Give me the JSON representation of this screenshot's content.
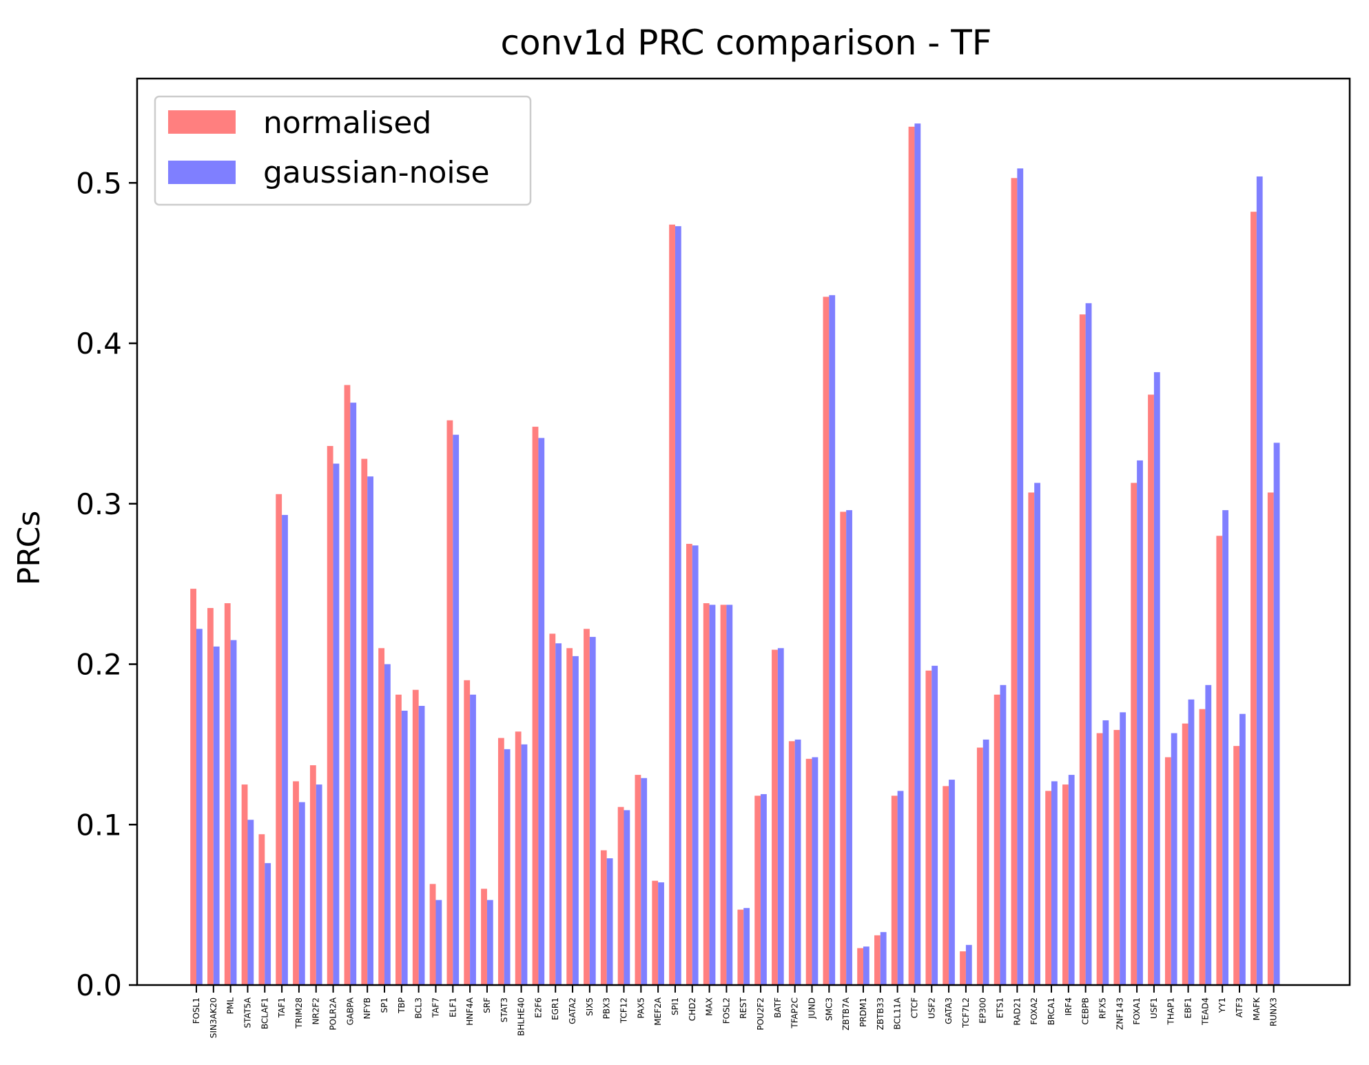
{
  "chart_data": {
    "type": "bar",
    "title": "conv1d PRC comparison - TF",
    "xlabel": "",
    "ylabel": "PRCs",
    "ylim": [
      0,
      0.565
    ],
    "yticks": [
      "0.0",
      "0.1",
      "0.2",
      "0.3",
      "0.4",
      "0.5"
    ],
    "ytick_values": [
      0,
      0.1,
      0.2,
      0.3,
      0.4,
      0.5
    ],
    "grid": false,
    "legend_position": "top-left",
    "categories": [
      "FOSL1",
      "SIN3AK20",
      "PML",
      "STAT5A",
      "BCLAF1",
      "TAF1",
      "TRIM28",
      "NR2F2",
      "POLR2A",
      "GABPA",
      "NFYB",
      "SP1",
      "TBP",
      "BCL3",
      "TAF7",
      "ELF1",
      "HNF4A",
      "SRF",
      "STAT3",
      "BHLHE40",
      "E2F6",
      "EGR1",
      "GATA2",
      "SIX5",
      "PBX3",
      "TCF12",
      "PAX5",
      "MEF2A",
      "SPI1",
      "CHD2",
      "MAX",
      "FOSL2",
      "REST",
      "POU2F2",
      "BATF",
      "TFAP2C",
      "JUND",
      "SMC3",
      "ZBTB7A",
      "PRDM1",
      "ZBTB33",
      "BCL11A",
      "CTCF",
      "USF2",
      "GATA3",
      "TCF7L2",
      "EP300",
      "ETS1",
      "RAD21",
      "FOXA2",
      "BRCA1",
      "IRF4",
      "CEBPB",
      "RFX5",
      "ZNF143",
      "FOXA1",
      "USF1",
      "THAP1",
      "EBF1",
      "TEAD4",
      "YY1",
      "ATF3",
      "MAFK",
      "RUNX3"
    ],
    "series": [
      {
        "name": "normalised",
        "color": "#ff7f7f",
        "values": [
          0.247,
          0.235,
          0.238,
          0.125,
          0.094,
          0.306,
          0.127,
          0.137,
          0.336,
          0.374,
          0.328,
          0.21,
          0.181,
          0.184,
          0.063,
          0.352,
          0.19,
          0.06,
          0.154,
          0.158,
          0.348,
          0.219,
          0.21,
          0.222,
          0.084,
          0.111,
          0.131,
          0.065,
          0.474,
          0.275,
          0.238,
          0.237,
          0.047,
          0.118,
          0.209,
          0.152,
          0.141,
          0.429,
          0.295,
          0.023,
          0.031,
          0.118,
          0.535,
          0.196,
          0.124,
          0.021,
          0.148,
          0.181,
          0.503,
          0.307,
          0.121,
          0.125,
          0.418,
          0.157,
          0.159,
          0.313,
          0.368,
          0.142,
          0.163,
          0.172,
          0.28,
          0.149,
          0.482,
          0.307
        ]
      },
      {
        "name": "gaussian-noise",
        "color": "#7f7fff",
        "values": [
          0.222,
          0.211,
          0.215,
          0.103,
          0.076,
          0.293,
          0.114,
          0.125,
          0.325,
          0.363,
          0.317,
          0.2,
          0.171,
          0.174,
          0.053,
          0.343,
          0.181,
          0.053,
          0.147,
          0.15,
          0.341,
          0.213,
          0.205,
          0.217,
          0.079,
          0.109,
          0.129,
          0.064,
          0.473,
          0.274,
          0.237,
          0.237,
          0.048,
          0.119,
          0.21,
          0.153,
          0.142,
          0.43,
          0.296,
          0.024,
          0.033,
          0.121,
          0.537,
          0.199,
          0.128,
          0.025,
          0.153,
          0.187,
          0.509,
          0.313,
          0.127,
          0.131,
          0.425,
          0.165,
          0.17,
          0.327,
          0.382,
          0.157,
          0.178,
          0.187,
          0.296,
          0.169,
          0.504,
          0.338
        ]
      }
    ]
  }
}
